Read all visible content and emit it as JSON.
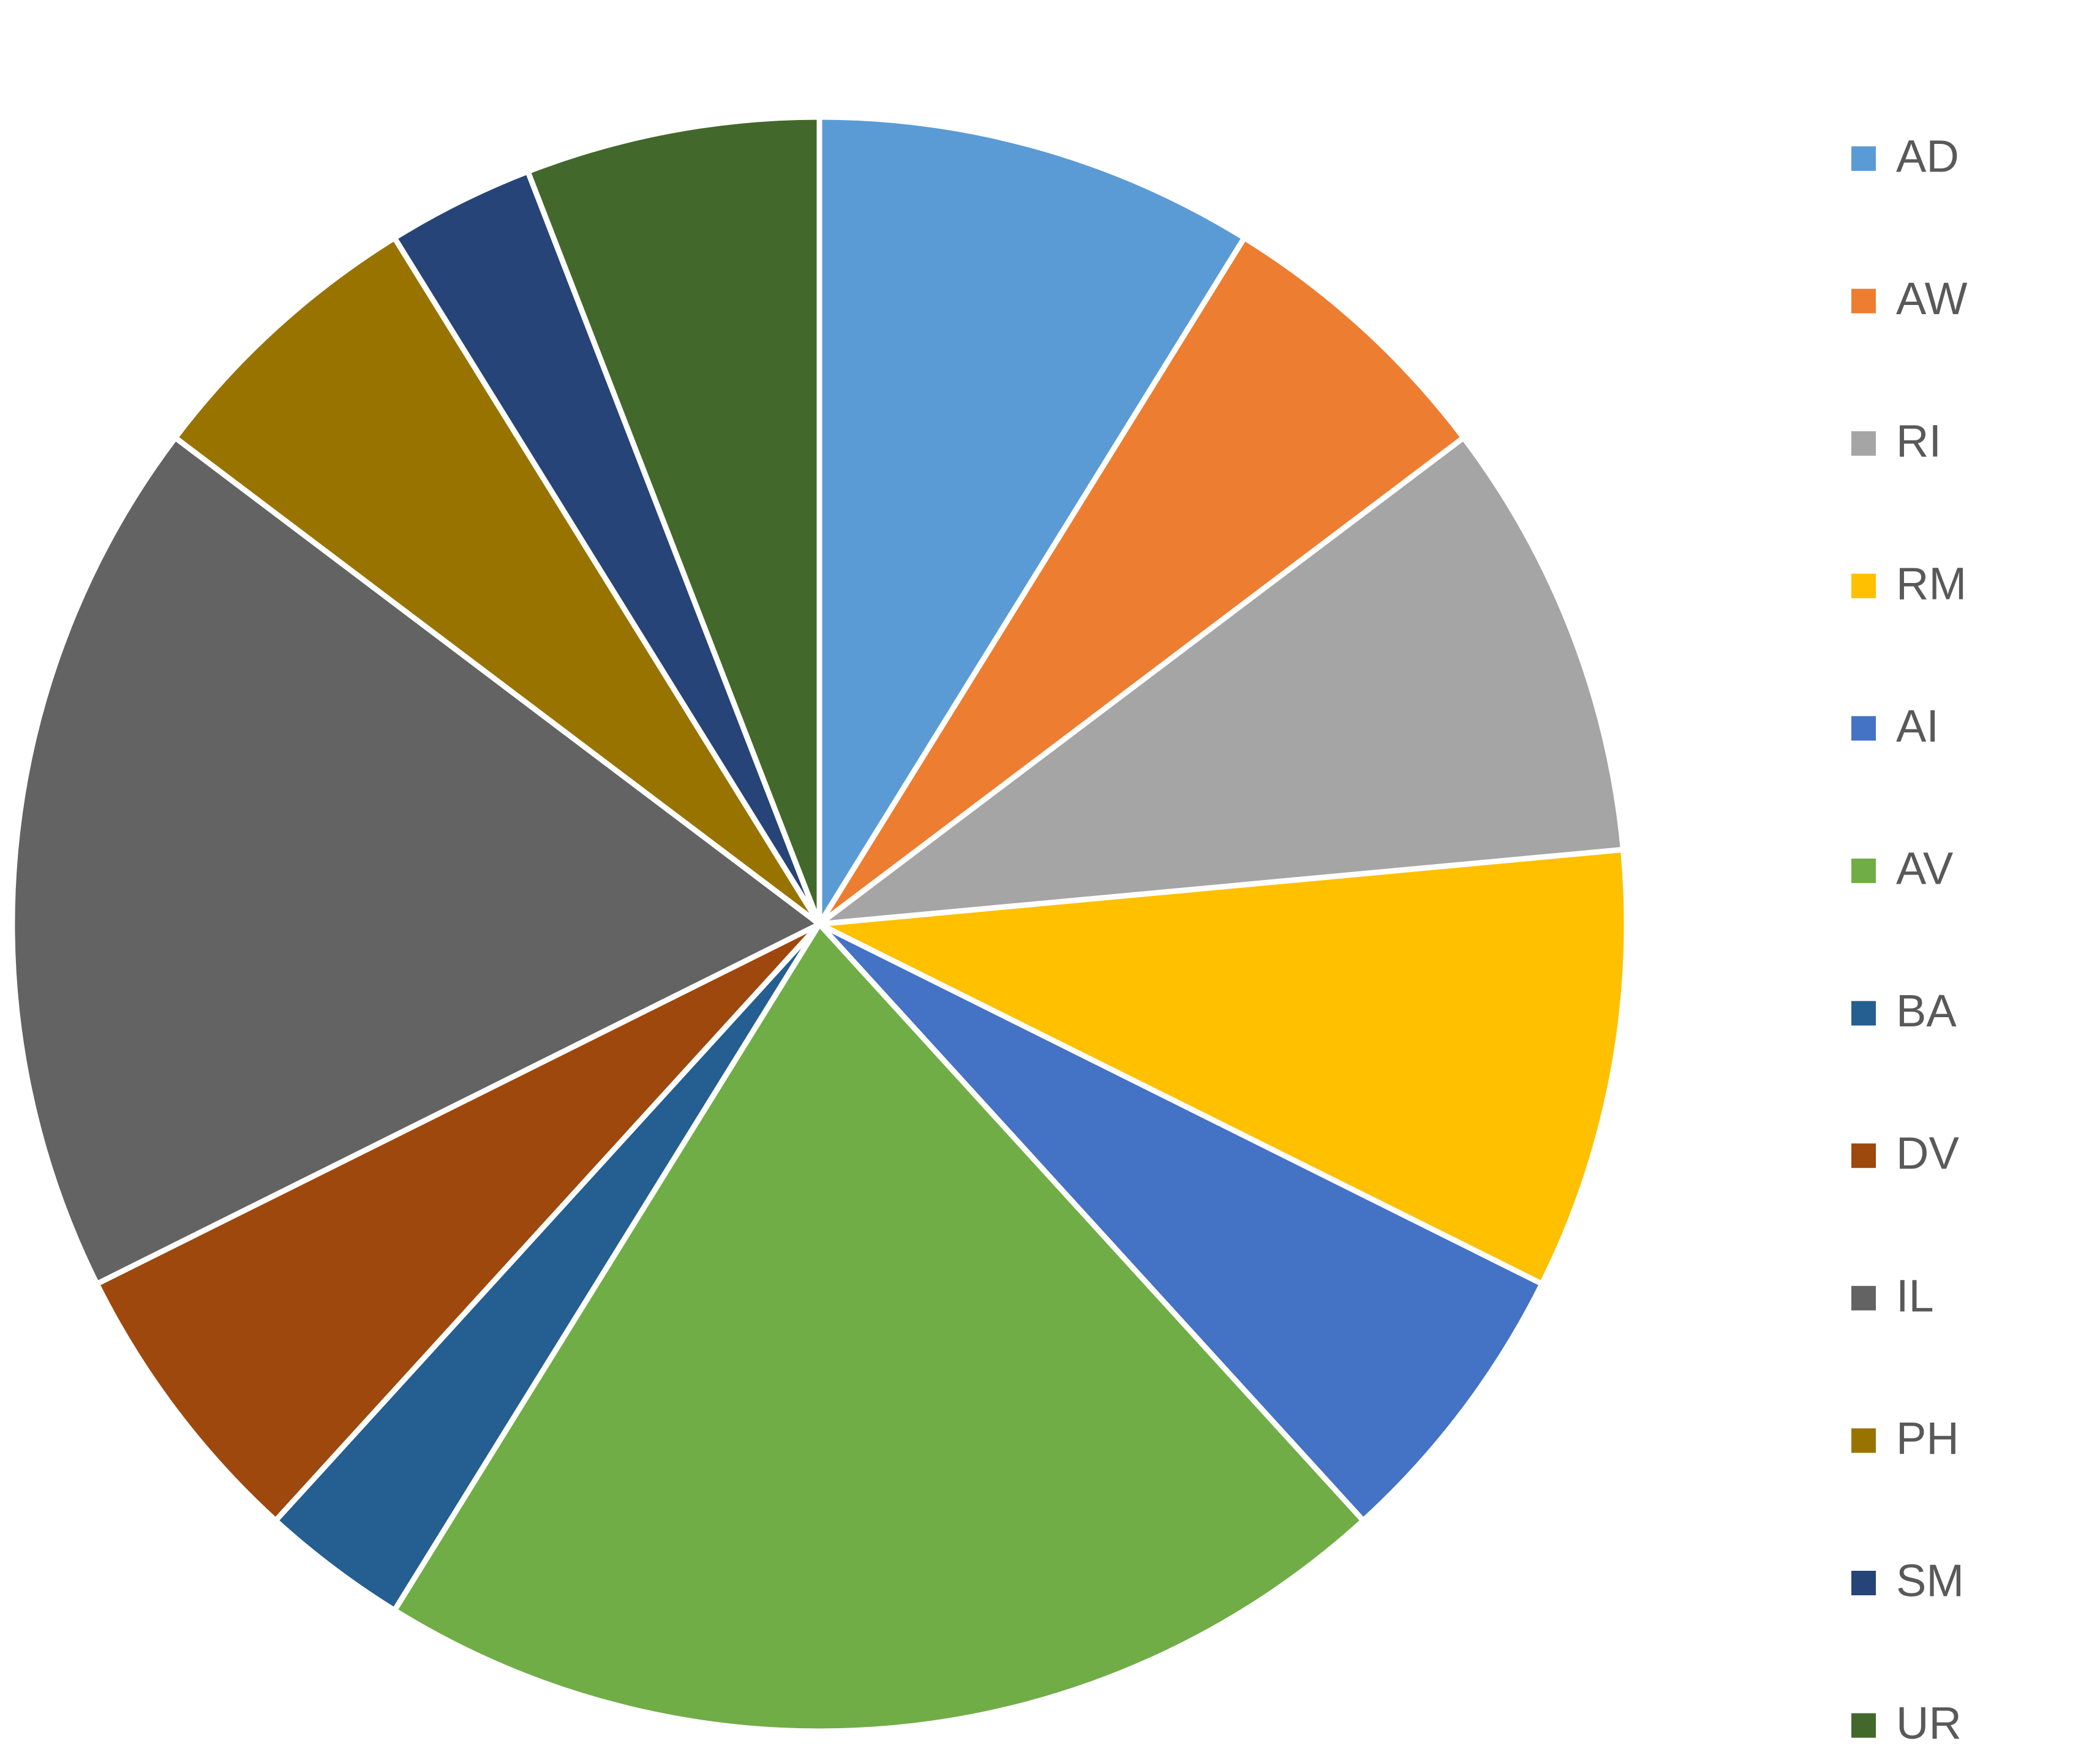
{
  "chart_data": {
    "type": "pie",
    "categories": [
      "AD",
      "AW",
      "RI",
      "RM",
      "AI",
      "AV",
      "BA",
      "DV",
      "IL",
      "PH",
      "SM",
      "UR"
    ],
    "values": [
      3,
      2,
      3,
      3,
      2,
      7,
      1,
      2,
      6,
      2,
      1,
      2
    ],
    "colors": [
      "#5b9bd5",
      "#ed7d31",
      "#a5a5a5",
      "#ffc000",
      "#4472c4",
      "#70ad47",
      "#255e91",
      "#9e480e",
      "#636363",
      "#997300",
      "#264478",
      "#43682b"
    ],
    "legend": "right"
  }
}
